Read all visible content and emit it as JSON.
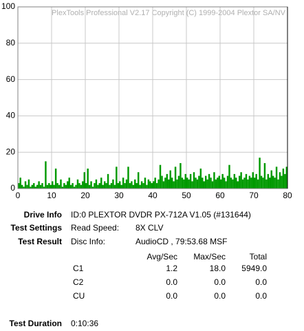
{
  "chart_data": {
    "type": "bar",
    "title": "PlexTools Professional V2.17 Copyright (C) 1999-2004 Plextor SA/NV",
    "color": "#009900",
    "grid": true,
    "xlim": [
      0,
      80
    ],
    "xticks": [
      0,
      10,
      20,
      30,
      40,
      50,
      60,
      70,
      80
    ],
    "ylim": [
      0,
      100
    ],
    "yticks": [
      0,
      20,
      40,
      60,
      80,
      100
    ],
    "x": [
      0,
      0.5,
      1,
      1.5,
      2,
      2.5,
      3,
      3.5,
      4,
      4.5,
      5,
      5.5,
      6,
      6.5,
      7,
      7.5,
      8,
      8.5,
      9,
      9.5,
      10,
      10.5,
      11,
      11.5,
      12,
      12.5,
      13,
      13.5,
      14,
      14.5,
      15,
      15.5,
      16,
      16.5,
      17,
      17.5,
      18,
      18.5,
      19,
      19.5,
      20,
      20.5,
      21,
      21.5,
      22,
      22.5,
      23,
      23.5,
      24,
      24.5,
      25,
      25.5,
      26,
      26.5,
      27,
      27.5,
      28,
      28.5,
      29,
      29.5,
      30,
      30.5,
      31,
      31.5,
      32,
      32.5,
      33,
      33.5,
      34,
      34.5,
      35,
      35.5,
      36,
      36.5,
      37,
      37.5,
      38,
      38.5,
      39,
      39.5,
      40,
      40.5,
      41,
      41.5,
      42,
      42.5,
      43,
      43.5,
      44,
      44.5,
      45,
      45.5,
      46,
      46.5,
      47,
      47.5,
      48,
      48.5,
      49,
      49.5,
      50,
      50.5,
      51,
      51.5,
      52,
      52.5,
      53,
      53.5,
      54,
      54.5,
      55,
      55.5,
      56,
      56.5,
      57,
      57.5,
      58,
      58.5,
      59,
      59.5,
      60,
      60.5,
      61,
      61.5,
      62,
      62.5,
      63,
      63.5,
      64,
      64.5,
      65,
      65.5,
      66,
      66.5,
      67,
      67.5,
      68,
      68.5,
      69,
      69.5,
      70,
      70.5,
      71,
      71.5,
      72,
      72.5,
      73,
      73.5,
      74,
      74.5,
      75,
      75.5,
      76,
      76.5,
      77,
      77.5,
      78,
      78.5,
      79,
      79.5
    ],
    "values": [
      3,
      6,
      2,
      1,
      4,
      2,
      5,
      1,
      2,
      3,
      1,
      2,
      4,
      2,
      3,
      1,
      15,
      2,
      3,
      2,
      4,
      2,
      11,
      3,
      2,
      5,
      1,
      3,
      2,
      4,
      6,
      2,
      3,
      1,
      2,
      5,
      3,
      2,
      4,
      9,
      3,
      11,
      2,
      4,
      1,
      3,
      5,
      2,
      3,
      6,
      2,
      4,
      3,
      8,
      2,
      3,
      5,
      2,
      12,
      3,
      4,
      2,
      6,
      3,
      5,
      12,
      3,
      4,
      2,
      5,
      3,
      9,
      2,
      4,
      3,
      6,
      2,
      5,
      4,
      3,
      4,
      6,
      3,
      5,
      13,
      7,
      4,
      6,
      8,
      5,
      10,
      6,
      4,
      12,
      5,
      7,
      14,
      6,
      5,
      8,
      6,
      5,
      8,
      4,
      9,
      6,
      5,
      7,
      11,
      6,
      4,
      7,
      5,
      8,
      6,
      4,
      9,
      5,
      6,
      7,
      5,
      8,
      6,
      4,
      7,
      13,
      6,
      5,
      8,
      6,
      4,
      7,
      9,
      5,
      6,
      8,
      5,
      7,
      6,
      9,
      6,
      8,
      5,
      17,
      7,
      6,
      14,
      5,
      8,
      6,
      10,
      7,
      6,
      12,
      5,
      9,
      7,
      11,
      8,
      12
    ]
  },
  "info": {
    "drive_label": "Drive Info",
    "drive_value": "ID:0 PLEXTOR DVDR PX-712A V1.05 (#131644)",
    "settings_label": "Test Settings",
    "read_speed_label": "Read Speed:",
    "read_speed_value": "8X CLV",
    "result_label": "Test Result",
    "disc_info_label": "Disc Info:",
    "disc_info_value": "AudioCD , 79:53.68 MSF",
    "duration_label": "Test Duration",
    "duration_value": "0:10:36"
  },
  "table": {
    "header": [
      "Avg/Sec",
      "Max/Sec",
      "Total"
    ],
    "rows": [
      [
        "C1",
        "1.2",
        "18.0",
        "5949.0"
      ],
      [
        "C2",
        "0.0",
        "0.0",
        "0.0"
      ],
      [
        "CU",
        "0.0",
        "0.0",
        "0.0"
      ]
    ]
  }
}
